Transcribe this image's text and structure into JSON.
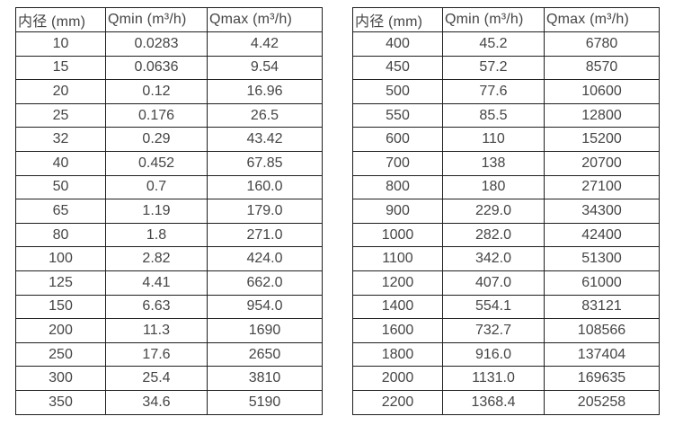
{
  "page": {
    "background": "#ffffff",
    "text_color": "#454545",
    "border_color": "#1f1f1f"
  },
  "tables": [
    {
      "name": "flow-spec-table-small-diameters",
      "headers": [
        "内径 (mm)",
        "Qmin (m³/h)",
        "Qmax (m³/h)"
      ],
      "rows": [
        [
          "10",
          "0.0283",
          "4.42"
        ],
        [
          "15",
          "0.0636",
          "9.54"
        ],
        [
          "20",
          "0.12",
          "16.96"
        ],
        [
          "25",
          "0.176",
          "26.5"
        ],
        [
          "32",
          "0.29",
          "43.42"
        ],
        [
          "40",
          "0.452",
          "67.85"
        ],
        [
          "50",
          "0.7",
          "160.0"
        ],
        [
          "65",
          "1.19",
          "179.0"
        ],
        [
          "80",
          "1.8",
          "271.0"
        ],
        [
          "100",
          "2.82",
          "424.0"
        ],
        [
          "125",
          "4.41",
          "662.0"
        ],
        [
          "150",
          "6.63",
          "954.0"
        ],
        [
          "200",
          "11.3",
          "1690"
        ],
        [
          "250",
          "17.6",
          "2650"
        ],
        [
          "300",
          "25.4",
          "3810"
        ],
        [
          "350",
          "34.6",
          "5190"
        ]
      ]
    },
    {
      "name": "flow-spec-table-large-diameters",
      "headers": [
        "内径 (mm)",
        "Qmin (m³/h)",
        "Qmax (m³/h)"
      ],
      "rows": [
        [
          "400",
          "45.2",
          "6780"
        ],
        [
          "450",
          "57.2",
          "8570"
        ],
        [
          "500",
          "77.6",
          "10600"
        ],
        [
          "550",
          "85.5",
          "12800"
        ],
        [
          "600",
          "110",
          "15200"
        ],
        [
          "700",
          "138",
          "20700"
        ],
        [
          "800",
          "180",
          "27100"
        ],
        [
          "900",
          "229.0",
          "34300"
        ],
        [
          "1000",
          "282.0",
          "42400"
        ],
        [
          "1100",
          "342.0",
          "51300"
        ],
        [
          "1200",
          "407.0",
          "61000"
        ],
        [
          "1400",
          "554.1",
          "83121"
        ],
        [
          "1600",
          "732.7",
          "108566"
        ],
        [
          "1800",
          "916.0",
          "137404"
        ],
        [
          "2000",
          "1131.0",
          "169635"
        ],
        [
          "2200",
          "1368.4",
          "205258"
        ]
      ]
    }
  ]
}
